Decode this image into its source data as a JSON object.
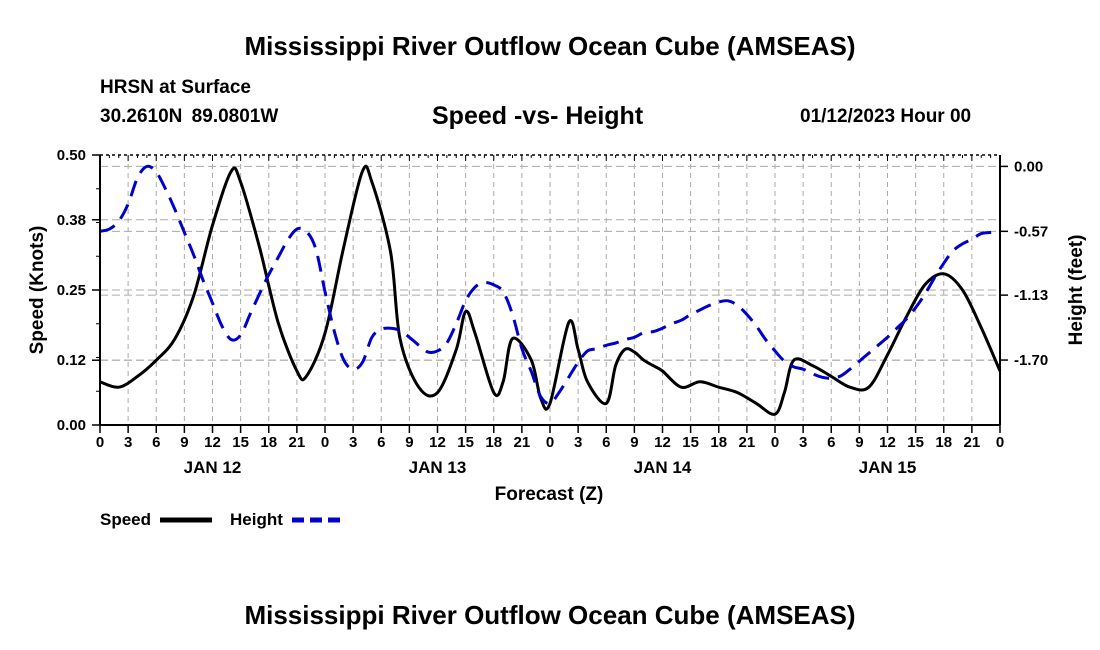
{
  "header": {
    "title": "Mississippi River Outflow Ocean Cube (AMSEAS)",
    "station": "HRSN at Surface",
    "coords": "30.2610N  89.0801W",
    "subtitle": "Speed -vs- Height",
    "datetime": "01/12/2023 Hour 00"
  },
  "footer": {
    "title": "Mississippi River Outflow Ocean Cube (AMSEAS)"
  },
  "colors": {
    "speed": "#000000",
    "height": "#0000cc",
    "grid": "#aaaaaa"
  },
  "chart_data": {
    "type": "line",
    "xlabel": "Forecast (Z)",
    "ylabel": "Speed (Knots)",
    "y2label": "Height (feet)",
    "ylim": [
      0,
      0.5
    ],
    "y2lim": [
      -2.27,
      0.1
    ],
    "yticks": [
      "0.00",
      "0.12",
      "0.25",
      "0.38",
      "0.50"
    ],
    "y2ticks": [
      "0.00",
      "-0.57",
      "-1.13",
      "-1.70"
    ],
    "xlim": [
      0,
      96
    ],
    "xtick_labels": [
      "0",
      "3",
      "6",
      "9",
      "12",
      "15",
      "18",
      "21",
      "0",
      "3",
      "6",
      "9",
      "12",
      "15",
      "18",
      "21",
      "0",
      "3",
      "6",
      "9",
      "12",
      "15",
      "18",
      "21",
      "0",
      "3",
      "6",
      "9",
      "12",
      "15",
      "18",
      "21",
      "0"
    ],
    "day_labels": [
      {
        "label": "JAN 12",
        "hour": 12
      },
      {
        "label": "JAN 13",
        "hour": 36
      },
      {
        "label": "JAN 14",
        "hour": 60
      },
      {
        "label": "JAN 15",
        "hour": 84
      }
    ],
    "legend": [
      {
        "name": "Speed",
        "style": "solid"
      },
      {
        "name": "Height",
        "style": "dashed"
      }
    ],
    "series": [
      {
        "name": "Speed",
        "axis": "left",
        "x": [
          0,
          2,
          4,
          6,
          8,
          10,
          12,
          14,
          15,
          17,
          19,
          21,
          22,
          24,
          26,
          28,
          29,
          31,
          32,
          34,
          36,
          38,
          39,
          40,
          42,
          43,
          44,
          46,
          47,
          48,
          50,
          51,
          52,
          54,
          55,
          56,
          57,
          58,
          59,
          60,
          62,
          64,
          66,
          68,
          70,
          72,
          73,
          74,
          76,
          78,
          80,
          82,
          84,
          86,
          88,
          90,
          92,
          94,
          96
        ],
        "values": [
          0.08,
          0.07,
          0.09,
          0.12,
          0.16,
          0.24,
          0.37,
          0.47,
          0.45,
          0.33,
          0.19,
          0.1,
          0.09,
          0.17,
          0.33,
          0.47,
          0.45,
          0.32,
          0.16,
          0.07,
          0.06,
          0.14,
          0.21,
          0.17,
          0.06,
          0.08,
          0.16,
          0.12,
          0.05,
          0.04,
          0.19,
          0.14,
          0.08,
          0.04,
          0.11,
          0.14,
          0.135,
          0.12,
          0.11,
          0.1,
          0.07,
          0.08,
          0.07,
          0.06,
          0.04,
          0.02,
          0.06,
          0.12,
          0.11,
          0.09,
          0.07,
          0.07,
          0.13,
          0.2,
          0.26,
          0.28,
          0.25,
          0.18,
          0.1
        ]
      },
      {
        "name": "Height",
        "axis": "right",
        "x": [
          0,
          1,
          2,
          3,
          4,
          5,
          6,
          7,
          8,
          9,
          10,
          11,
          12,
          13,
          14,
          15,
          16,
          17,
          18,
          19,
          20,
          21,
          22,
          23,
          24,
          25,
          26,
          27,
          28,
          29,
          30,
          31,
          32,
          33,
          34,
          35,
          36,
          37,
          38,
          39,
          40,
          41,
          42,
          43,
          44,
          45,
          46,
          47,
          48,
          49,
          50,
          51,
          52,
          53,
          54,
          55,
          56,
          57,
          58,
          59,
          60,
          61,
          62,
          63,
          64,
          65,
          66,
          67,
          68,
          69,
          70,
          71,
          72,
          73,
          74,
          75,
          76,
          77,
          78,
          79,
          80,
          81,
          82,
          83,
          84,
          85,
          86,
          87,
          88,
          89,
          90,
          91,
          92,
          93,
          94,
          95,
          96
        ],
        "values": [
          -0.57,
          -0.55,
          -0.48,
          -0.33,
          -0.1,
          0.0,
          -0.05,
          -0.2,
          -0.38,
          -0.58,
          -0.78,
          -1.0,
          -1.2,
          -1.4,
          -1.52,
          -1.48,
          -1.3,
          -1.12,
          -0.95,
          -0.8,
          -0.65,
          -0.55,
          -0.57,
          -0.72,
          -1.1,
          -1.45,
          -1.7,
          -1.78,
          -1.72,
          -1.5,
          -1.43,
          -1.42,
          -1.44,
          -1.5,
          -1.57,
          -1.63,
          -1.62,
          -1.55,
          -1.38,
          -1.18,
          -1.06,
          -1.02,
          -1.04,
          -1.1,
          -1.3,
          -1.6,
          -1.8,
          -2.02,
          -2.08,
          -1.98,
          -1.85,
          -1.72,
          -1.62,
          -1.6,
          -1.57,
          -1.55,
          -1.52,
          -1.5,
          -1.46,
          -1.45,
          -1.42,
          -1.38,
          -1.35,
          -1.3,
          -1.26,
          -1.22,
          -1.19,
          -1.18,
          -1.22,
          -1.3,
          -1.4,
          -1.52,
          -1.62,
          -1.71,
          -1.76,
          -1.78,
          -1.82,
          -1.85,
          -1.86,
          -1.84,
          -1.78,
          -1.71,
          -1.64,
          -1.57,
          -1.5,
          -1.42,
          -1.34,
          -1.24,
          -1.12,
          -0.98,
          -0.85,
          -0.74,
          -0.68,
          -0.64,
          -0.59,
          -0.58,
          -0.58
        ]
      }
    ]
  }
}
